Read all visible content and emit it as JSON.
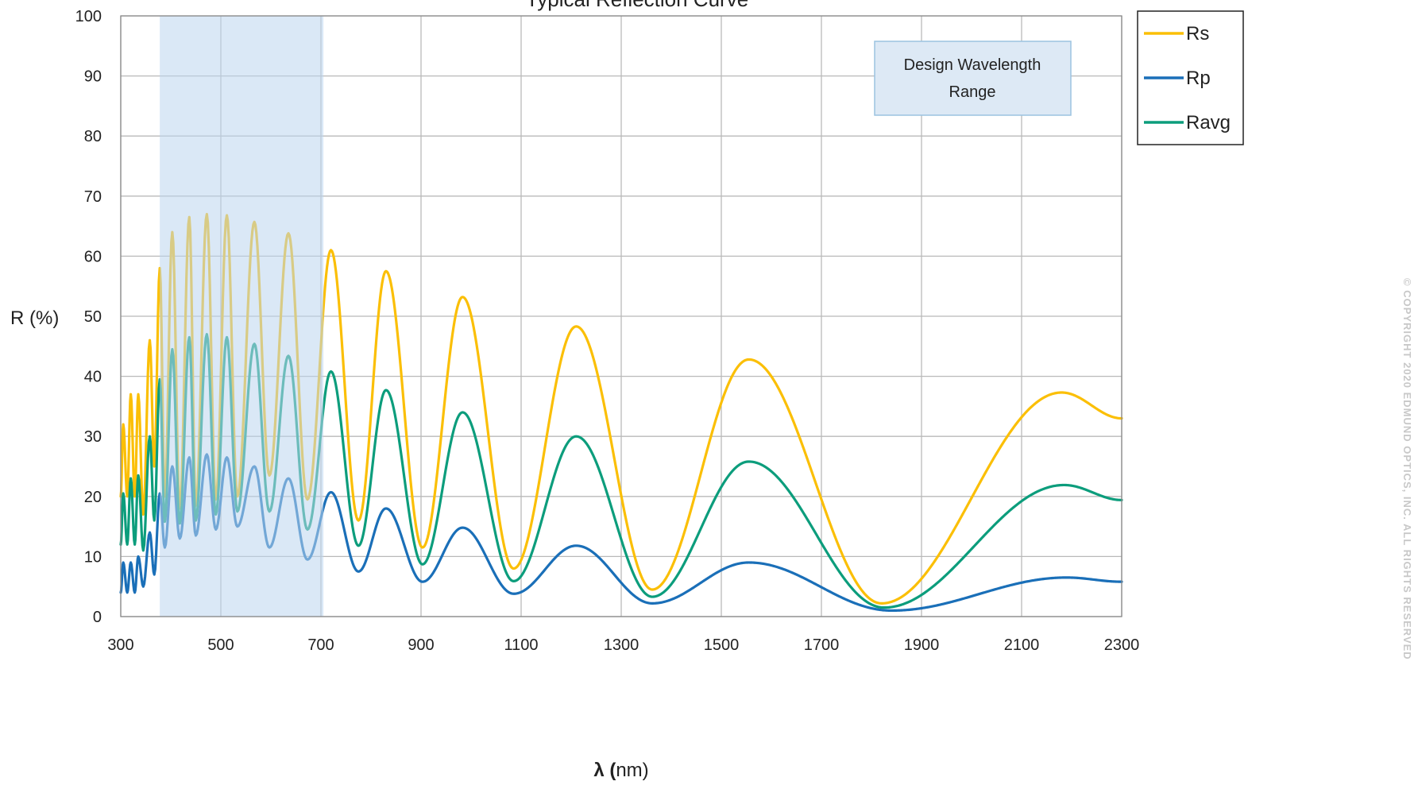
{
  "chart_data": {
    "type": "line",
    "title": "Typical Reflection Curve",
    "xlabel_bold": "λ (",
    "xlabel_rest": "nm)",
    "ylabel": "R (%)",
    "xlim": [
      300,
      2300
    ],
    "ylim": [
      0,
      100
    ],
    "x_ticks": [
      300,
      500,
      700,
      900,
      1100,
      1300,
      1500,
      1700,
      1900,
      2100,
      2300
    ],
    "y_ticks": [
      0,
      10,
      20,
      30,
      40,
      50,
      60,
      70,
      80,
      90,
      100
    ],
    "grid": true,
    "legend_position": "outside-top-right",
    "highlight_band": {
      "x_start": 378,
      "x_end": 705,
      "color": "#bcd6ef"
    },
    "annotation_lines": [
      "Design Wavelength",
      "Range"
    ],
    "series": [
      {
        "name": "Rs",
        "color": "#fbbf06",
        "extrema": [
          [
            300,
            20
          ],
          [
            305,
            32
          ],
          [
            313,
            20
          ],
          [
            320,
            37
          ],
          [
            328,
            20
          ],
          [
            335,
            37
          ],
          [
            345,
            17
          ],
          [
            358,
            46
          ],
          [
            367,
            25
          ],
          [
            378,
            58
          ],
          [
            388,
            20
          ],
          [
            403,
            64
          ],
          [
            418,
            18
          ],
          [
            437,
            66.5
          ],
          [
            450,
            18.5
          ],
          [
            472,
            67
          ],
          [
            490,
            19.5
          ],
          [
            512,
            66.8
          ],
          [
            533,
            20
          ],
          [
            567,
            65.7
          ],
          [
            597,
            23.5
          ],
          [
            635,
            63.8
          ],
          [
            673,
            19.5
          ],
          [
            720,
            61
          ],
          [
            775,
            16
          ],
          [
            830,
            57.5
          ],
          [
            903,
            11.5
          ],
          [
            983,
            53.2
          ],
          [
            1085,
            8
          ],
          [
            1210,
            48.3
          ],
          [
            1362,
            4.5
          ],
          [
            1555,
            42.8
          ],
          [
            1820,
            2.2
          ],
          [
            2180,
            37.3
          ],
          [
            2300,
            33
          ]
        ]
      },
      {
        "name": "Rp",
        "color": "#1a6fb8",
        "extrema": [
          [
            300,
            4
          ],
          [
            305,
            9
          ],
          [
            313,
            4
          ],
          [
            320,
            9
          ],
          [
            328,
            4
          ],
          [
            335,
            10
          ],
          [
            345,
            5
          ],
          [
            358,
            14
          ],
          [
            367,
            7
          ],
          [
            378,
            20.5
          ],
          [
            388,
            11.5
          ],
          [
            403,
            25
          ],
          [
            418,
            13
          ],
          [
            437,
            26.5
          ],
          [
            450,
            13.5
          ],
          [
            472,
            27
          ],
          [
            490,
            14.5
          ],
          [
            512,
            26.5
          ],
          [
            533,
            15
          ],
          [
            567,
            25
          ],
          [
            597,
            11.5
          ],
          [
            635,
            23
          ],
          [
            673,
            9.5
          ],
          [
            720,
            20.7
          ],
          [
            775,
            7.5
          ],
          [
            830,
            18
          ],
          [
            903,
            5.8
          ],
          [
            983,
            14.8
          ],
          [
            1085,
            3.8
          ],
          [
            1210,
            11.8
          ],
          [
            1362,
            2.2
          ],
          [
            1555,
            9
          ],
          [
            1840,
            1
          ],
          [
            2190,
            6.5
          ],
          [
            2300,
            5.8
          ]
        ]
      },
      {
        "name": "Ravg",
        "color": "#0c9d7c",
        "extrema": [
          [
            300,
            12
          ],
          [
            305,
            20.5
          ],
          [
            313,
            12
          ],
          [
            320,
            23
          ],
          [
            328,
            12
          ],
          [
            335,
            23.5
          ],
          [
            345,
            11
          ],
          [
            358,
            30
          ],
          [
            367,
            16
          ],
          [
            378,
            39.5
          ],
          [
            388,
            15.8
          ],
          [
            403,
            44.5
          ],
          [
            418,
            15.5
          ],
          [
            437,
            46.5
          ],
          [
            450,
            16
          ],
          [
            472,
            47
          ],
          [
            490,
            17
          ],
          [
            512,
            46.5
          ],
          [
            533,
            17.5
          ],
          [
            567,
            45.4
          ],
          [
            597,
            17.5
          ],
          [
            635,
            43.4
          ],
          [
            673,
            14.5
          ],
          [
            720,
            40.8
          ],
          [
            775,
            11.8
          ],
          [
            830,
            37.7
          ],
          [
            903,
            8.7
          ],
          [
            983,
            34
          ],
          [
            1085,
            5.9
          ],
          [
            1210,
            30
          ],
          [
            1362,
            3.3
          ],
          [
            1555,
            25.8
          ],
          [
            1825,
            1.5
          ],
          [
            2185,
            21.9
          ],
          [
            2300,
            19.4
          ]
        ]
      }
    ]
  },
  "copyright_text": "© COPYRIGHT 2020 EDMUND OPTICS, INC. ALL RIGHTS RESERVED"
}
